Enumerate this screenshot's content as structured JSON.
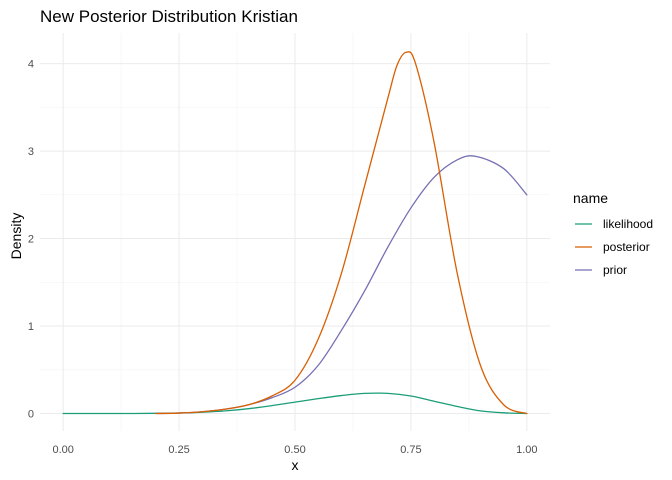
{
  "chart_data": {
    "type": "line",
    "title": "New Posterior Distribution Kristian",
    "xlabel": "x",
    "ylabel": "Density",
    "xlim": [
      -0.05,
      1.05
    ],
    "ylim": [
      -0.2,
      4.35
    ],
    "x_ticks": [
      0.0,
      0.25,
      0.5,
      0.75,
      1.0
    ],
    "x_tick_labels": [
      "0.00",
      "0.25",
      "0.50",
      "0.75",
      "1.00"
    ],
    "y_ticks": [
      0,
      1,
      2,
      3,
      4
    ],
    "y_tick_labels": [
      "0",
      "1",
      "2",
      "3",
      "4"
    ],
    "grid": true,
    "legend": {
      "title": "name",
      "placement": "right",
      "entries": [
        "likelihood",
        "posterior",
        "prior"
      ]
    },
    "series": [
      {
        "name": "likelihood",
        "color": "#1b9e77",
        "x": [
          0.0,
          0.05,
          0.1,
          0.15,
          0.2,
          0.25,
          0.3,
          0.35,
          0.4,
          0.45,
          0.5,
          0.55,
          0.6,
          0.65,
          0.7,
          0.75,
          0.8,
          0.85,
          0.9,
          0.95,
          1.0
        ],
        "y": [
          0.0,
          0.0,
          0.0,
          0.0,
          0.002,
          0.006,
          0.015,
          0.03,
          0.055,
          0.09,
          0.13,
          0.17,
          0.205,
          0.23,
          0.23,
          0.2,
          0.14,
          0.08,
          0.03,
          0.008,
          0.0
        ]
      },
      {
        "name": "posterior",
        "color": "#d95f02",
        "x": [
          0.2,
          0.25,
          0.3,
          0.35,
          0.4,
          0.45,
          0.5,
          0.55,
          0.6,
          0.65,
          0.7,
          0.72,
          0.74,
          0.76,
          0.8,
          0.85,
          0.9,
          0.95,
          1.0
        ],
        "y": [
          0.0,
          0.005,
          0.02,
          0.05,
          0.1,
          0.2,
          0.38,
          0.85,
          1.6,
          2.6,
          3.6,
          3.98,
          4.13,
          4.0,
          3.1,
          1.6,
          0.55,
          0.1,
          0.0
        ]
      },
      {
        "name": "prior",
        "color": "#7570b3",
        "x": [
          0.2,
          0.25,
          0.3,
          0.35,
          0.4,
          0.45,
          0.5,
          0.55,
          0.6,
          0.65,
          0.7,
          0.75,
          0.8,
          0.85,
          0.89,
          0.95,
          1.0
        ],
        "y": [
          0.0,
          0.005,
          0.02,
          0.05,
          0.1,
          0.18,
          0.3,
          0.55,
          0.95,
          1.4,
          1.9,
          2.35,
          2.7,
          2.9,
          2.94,
          2.8,
          2.5
        ]
      }
    ]
  }
}
